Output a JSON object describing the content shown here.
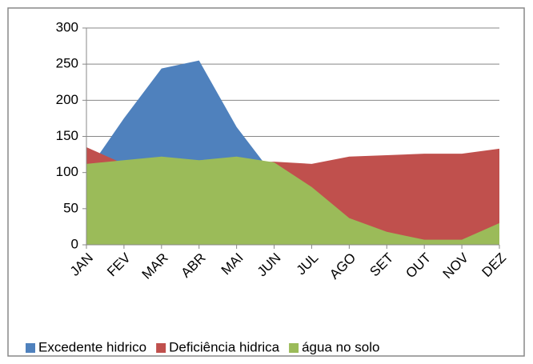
{
  "chart_data": {
    "type": "area",
    "categories": [
      "JAN",
      "FEV",
      "MAR",
      "ABR",
      "MAI",
      "JUN",
      "JUL",
      "AGO",
      "SET",
      "OUT",
      "NOV",
      "DEZ"
    ],
    "series": [
      {
        "name": "Excedente hidrico",
        "color": "#4f81bd",
        "values": [
          100,
          175,
          244,
          255,
          163,
          95,
          0,
          0,
          0,
          0,
          0,
          0
        ]
      },
      {
        "name": "Deficiência hidrica",
        "color": "#c0504d",
        "values": [
          135,
          112,
          110,
          110,
          113,
          115,
          112,
          122,
          124,
          126,
          126,
          133
        ]
      },
      {
        "name": "água no solo",
        "color": "#9bbb59",
        "values": [
          112,
          117,
          122,
          117,
          122,
          114,
          80,
          37,
          18,
          7,
          7,
          30
        ]
      }
    ],
    "ylim": [
      0,
      300
    ],
    "yticks": [
      0,
      50,
      100,
      150,
      200,
      250,
      300
    ],
    "grid": true,
    "legend": "bottom"
  }
}
